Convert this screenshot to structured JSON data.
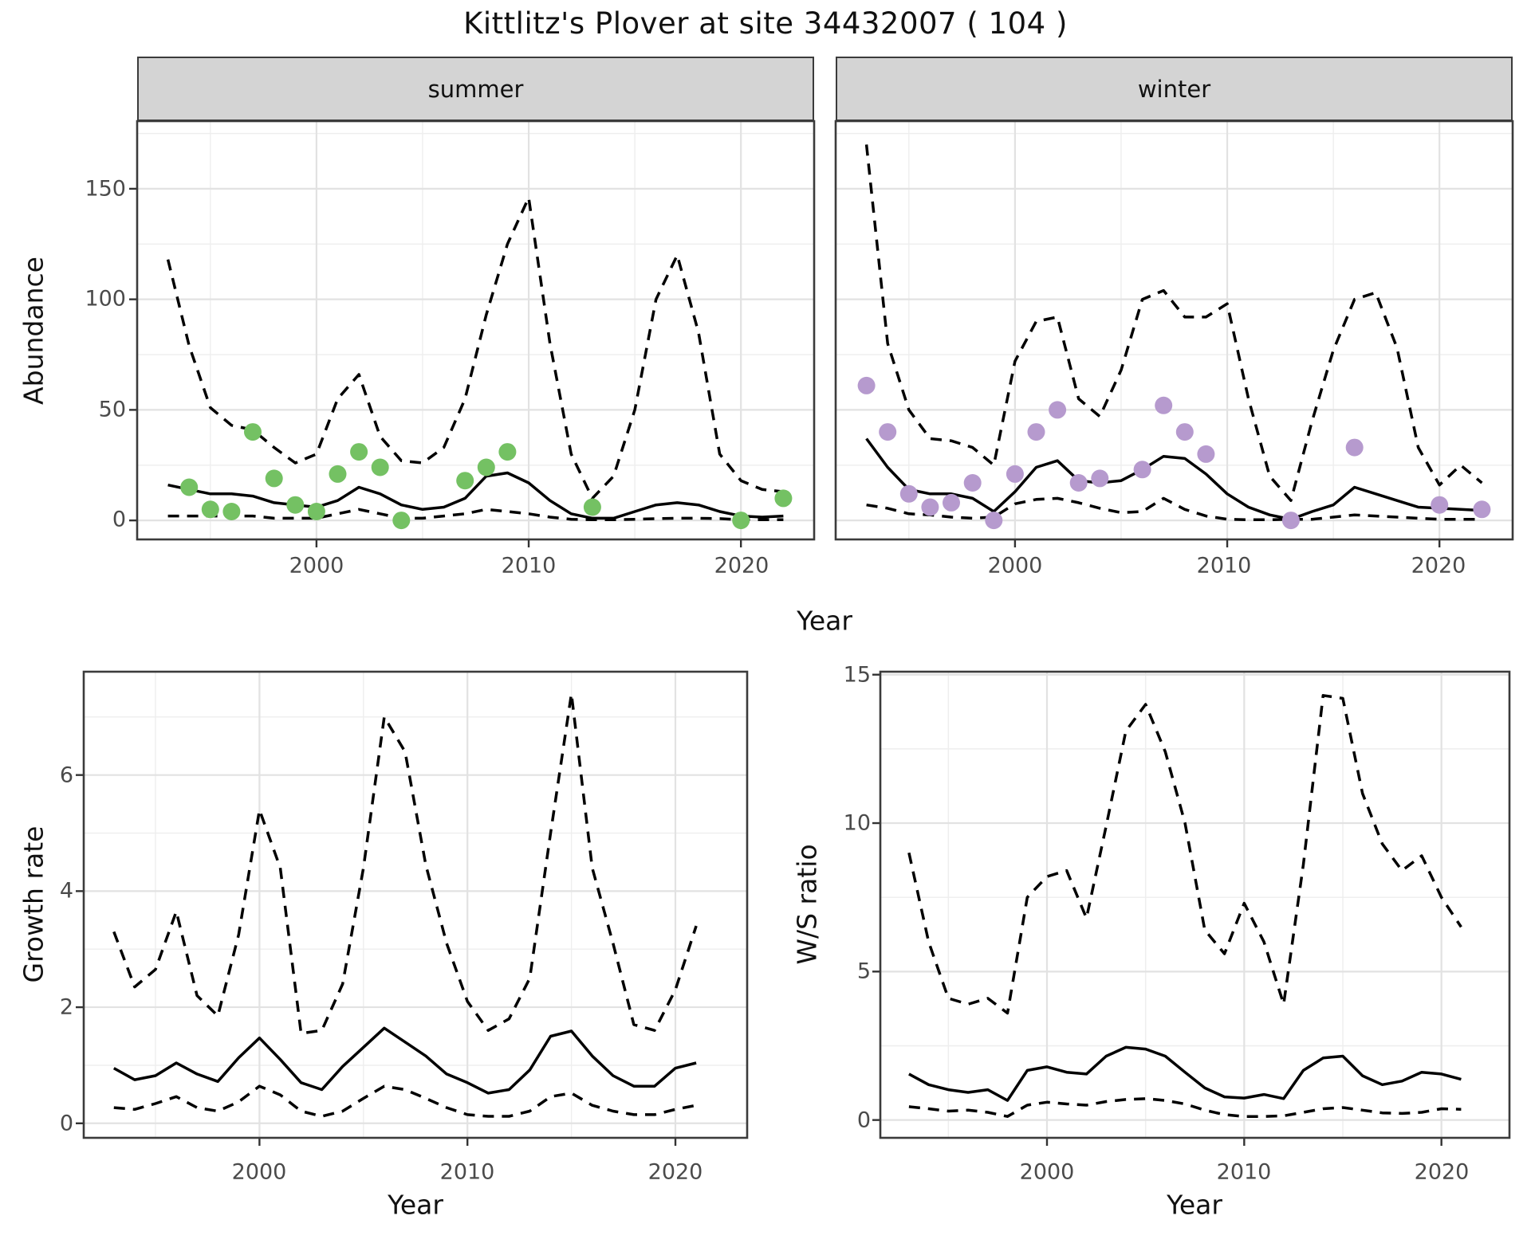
{
  "title": "Kittlitz's Plover at site 34432007 ( 104 )",
  "colors": {
    "summer_point": "#74c163",
    "winter_point": "#b69ace",
    "line": "#000000",
    "grid_major": "#e2e2e2",
    "grid_minor": "#eeeeee",
    "strip_fill": "#d4d4d4",
    "panel_border": "#3b3b3b",
    "tick_text": "#4a4a4a"
  },
  "chart_data": [
    {
      "id": "abundance-summer",
      "type": "line",
      "facet_label": "summer",
      "xlabel": "Year",
      "ylabel": "Abundance",
      "xlim": [
        1991.55,
        2023.45
      ],
      "ylim": [
        -8.6,
        180.6
      ],
      "x_major": [
        2000,
        2010,
        2020
      ],
      "x_minor": [
        1995,
        2005,
        2015
      ],
      "y_major": [
        0,
        50,
        100,
        150
      ],
      "y_minor": [
        25,
        75,
        125,
        175
      ],
      "x_tick_labels": [
        "2000",
        "2010",
        "2020"
      ],
      "y_tick_labels": [
        "0",
        "50",
        "100",
        "150"
      ],
      "grid": true,
      "legend": "none",
      "years": [
        1993,
        1994,
        1995,
        1996,
        1997,
        1998,
        1999,
        2000,
        2001,
        2002,
        2003,
        2004,
        2005,
        2006,
        2007,
        2008,
        2009,
        2010,
        2011,
        2012,
        2013,
        2014,
        2015,
        2016,
        2017,
        2018,
        2019,
        2020,
        2021,
        2022
      ],
      "series": [
        {
          "name": "median",
          "style": "solid",
          "values": [
            16,
            14,
            12,
            12,
            11,
            8,
            7,
            6,
            9,
            15,
            12,
            7,
            5,
            6,
            10,
            20,
            21.5,
            17,
            9,
            3,
            1,
            1,
            4,
            7,
            8,
            7,
            4,
            2,
            1.5,
            2
          ]
        },
        {
          "name": "upper_ci",
          "style": "dashed",
          "values": [
            118,
            79,
            51,
            43,
            41,
            33,
            26,
            30,
            55,
            66,
            38,
            27,
            26,
            33,
            55,
            93,
            125,
            146,
            80,
            30,
            10,
            20,
            50,
            100,
            120,
            85,
            30,
            18,
            14,
            13
          ]
        },
        {
          "name": "lower_ci",
          "style": "dashed",
          "values": [
            2,
            2,
            2,
            2,
            2,
            1,
            1,
            1,
            3,
            5,
            3,
            1,
            1,
            2,
            3,
            5,
            4,
            3,
            1.5,
            0.5,
            0.3,
            0.3,
            0.5,
            0.8,
            1,
            1,
            0.8,
            0.3,
            0.3,
            0.3
          ]
        }
      ],
      "points": {
        "name": "observed",
        "color": "#74c163",
        "data": [
          [
            1994,
            15
          ],
          [
            1995,
            5
          ],
          [
            1996,
            4
          ],
          [
            1997,
            40
          ],
          [
            1998,
            19
          ],
          [
            1999,
            7
          ],
          [
            2000,
            4
          ],
          [
            2001,
            21
          ],
          [
            2002,
            31
          ],
          [
            2003,
            24
          ],
          [
            2004,
            0
          ],
          [
            2007,
            18
          ],
          [
            2008,
            24
          ],
          [
            2009,
            31
          ],
          [
            2013,
            6
          ],
          [
            2020,
            0
          ],
          [
            2022,
            10
          ]
        ]
      }
    },
    {
      "id": "abundance-winter",
      "type": "line",
      "facet_label": "winter",
      "xlabel": "Year",
      "ylabel": "Abundance",
      "xlim": [
        1991.55,
        2023.45
      ],
      "ylim": [
        -8.6,
        180.6
      ],
      "x_major": [
        2000,
        2010,
        2020
      ],
      "x_minor": [
        1995,
        2005,
        2015
      ],
      "y_major": [
        0,
        50,
        100,
        150
      ],
      "y_minor": [
        25,
        75,
        125,
        175
      ],
      "x_tick_labels": [
        "2000",
        "2010",
        "2020"
      ],
      "y_tick_labels": [
        "0",
        "50",
        "100",
        "150"
      ],
      "grid": true,
      "legend": "none",
      "years": [
        1993,
        1994,
        1995,
        1996,
        1997,
        1998,
        1999,
        2000,
        2001,
        2002,
        2003,
        2004,
        2005,
        2006,
        2007,
        2008,
        2009,
        2010,
        2011,
        2012,
        2013,
        2014,
        2015,
        2016,
        2017,
        2018,
        2019,
        2020,
        2021,
        2022
      ],
      "series": [
        {
          "name": "median",
          "style": "solid",
          "values": [
            37,
            24,
            14,
            12,
            12,
            10,
            4,
            13,
            24,
            27,
            18,
            17,
            18,
            23,
            29,
            28,
            21,
            12,
            6,
            2.5,
            0.5,
            4,
            7,
            15,
            12,
            9,
            6,
            5.5,
            5,
            4.5
          ]
        },
        {
          "name": "upper_ci",
          "style": "dashed",
          "values": [
            170,
            80,
            50,
            37,
            36,
            33,
            25,
            72,
            90,
            92,
            55,
            47,
            68,
            100,
            104,
            92,
            92,
            98,
            55,
            20,
            9,
            45,
            77,
            100,
            103,
            78,
            33,
            16,
            25,
            17
          ]
        },
        {
          "name": "lower_ci",
          "style": "dashed",
          "values": [
            7,
            5.5,
            3,
            2.5,
            1.5,
            1,
            1.5,
            7.5,
            9.5,
            10,
            8,
            5.5,
            3.5,
            4,
            10,
            5,
            2,
            0.5,
            0.3,
            0.3,
            0.5,
            0.5,
            1.5,
            2.5,
            2,
            1.5,
            1,
            0.5,
            0.5,
            0.5
          ]
        }
      ],
      "points": {
        "name": "observed",
        "color": "#b69ace",
        "data": [
          [
            1993,
            61
          ],
          [
            1994,
            40
          ],
          [
            1995,
            12
          ],
          [
            1996,
            6
          ],
          [
            1997,
            8
          ],
          [
            1998,
            17
          ],
          [
            1999,
            0
          ],
          [
            2000,
            21
          ],
          [
            2001,
            40
          ],
          [
            2002,
            50
          ],
          [
            2003,
            17
          ],
          [
            2004,
            19
          ],
          [
            2006,
            23
          ],
          [
            2007,
            52
          ],
          [
            2008,
            40
          ],
          [
            2009,
            30
          ],
          [
            2013,
            0
          ],
          [
            2016,
            33
          ],
          [
            2020,
            7
          ],
          [
            2022,
            5
          ]
        ]
      }
    },
    {
      "id": "growth-rate",
      "type": "line",
      "facet_label": "",
      "xlabel": "Year",
      "ylabel": "Growth rate",
      "xlim": [
        1991.55,
        2023.45
      ],
      "ylim": [
        -0.25,
        7.78
      ],
      "x_major": [
        2000,
        2010,
        2020
      ],
      "x_minor": [
        1995,
        2005,
        2015
      ],
      "y_major": [
        0,
        2,
        4,
        6
      ],
      "y_minor": [
        1,
        3,
        5,
        7
      ],
      "x_tick_labels": [
        "2000",
        "2010",
        "2020"
      ],
      "y_tick_labels": [
        "0",
        "2",
        "4",
        "6"
      ],
      "grid": true,
      "legend": "none",
      "years": [
        1993,
        1994,
        1995,
        1996,
        1997,
        1998,
        1999,
        2000,
        2001,
        2002,
        2003,
        2004,
        2005,
        2006,
        2007,
        2008,
        2009,
        2010,
        2011,
        2012,
        2013,
        2014,
        2015,
        2016,
        2017,
        2018,
        2019,
        2020,
        2021
      ],
      "series": [
        {
          "name": "median",
          "style": "solid",
          "values": [
            0.95,
            0.75,
            0.82,
            1.04,
            0.85,
            0.72,
            1.13,
            1.47,
            1.1,
            0.7,
            0.58,
            0.98,
            1.31,
            1.64,
            1.4,
            1.16,
            0.85,
            0.7,
            0.52,
            0.58,
            0.92,
            1.5,
            1.59,
            1.16,
            0.82,
            0.64,
            0.64,
            0.95,
            1.04
          ]
        },
        {
          "name": "upper_ci",
          "style": "dashed",
          "values": [
            3.3,
            2.35,
            2.65,
            3.65,
            2.2,
            1.85,
            3.25,
            5.4,
            4.4,
            1.55,
            1.6,
            2.4,
            4.4,
            7.0,
            6.4,
            4.45,
            3.1,
            2.1,
            1.6,
            1.8,
            2.5,
            5.0,
            7.4,
            4.4,
            3.1,
            1.7,
            1.6,
            2.3,
            3.4
          ]
        },
        {
          "name": "lower_ci",
          "style": "dashed",
          "values": [
            0.27,
            0.24,
            0.34,
            0.46,
            0.27,
            0.21,
            0.37,
            0.64,
            0.49,
            0.21,
            0.12,
            0.21,
            0.43,
            0.64,
            0.58,
            0.43,
            0.27,
            0.15,
            0.12,
            0.12,
            0.21,
            0.46,
            0.52,
            0.31,
            0.21,
            0.15,
            0.15,
            0.24,
            0.31
          ]
        }
      ],
      "points": null
    },
    {
      "id": "ws-ratio",
      "type": "line",
      "facet_label": "",
      "xlabel": "Year",
      "ylabel": "W/S ratio",
      "xlim": [
        1991.55,
        2023.45
      ],
      "ylim": [
        -0.6,
        15.1
      ],
      "x_major": [
        2000,
        2010,
        2020
      ],
      "x_minor": [
        1995,
        2005,
        2015
      ],
      "y_major": [
        0,
        5,
        10,
        15
      ],
      "y_minor": [
        2.5,
        7.5,
        12.5
      ],
      "x_tick_labels": [
        "2000",
        "2010",
        "2020"
      ],
      "y_tick_labels": [
        "0",
        "5",
        "10",
        "15"
      ],
      "grid": true,
      "legend": "none",
      "years": [
        1993,
        1994,
        1995,
        1996,
        1997,
        1998,
        1999,
        2000,
        2001,
        2002,
        2003,
        2004,
        2005,
        2006,
        2007,
        2008,
        2009,
        2010,
        2011,
        2012,
        2013,
        2014,
        2015,
        2016,
        2017,
        2018,
        2019,
        2020,
        2021
      ],
      "series": [
        {
          "name": "median",
          "style": "solid",
          "values": [
            1.55,
            1.19,
            1.02,
            0.93,
            1.02,
            0.66,
            1.67,
            1.79,
            1.61,
            1.55,
            2.15,
            2.45,
            2.39,
            2.15,
            1.61,
            1.08,
            0.78,
            0.74,
            0.86,
            0.72,
            1.67,
            2.09,
            2.15,
            1.49,
            1.19,
            1.31,
            1.61,
            1.55,
            1.37
          ]
        },
        {
          "name": "upper_ci",
          "style": "dashed",
          "values": [
            9.0,
            6.0,
            4.1,
            3.9,
            4.1,
            3.6,
            7.5,
            8.2,
            8.4,
            6.8,
            9.9,
            13.1,
            14.0,
            12.4,
            10.0,
            6.4,
            5.6,
            7.3,
            6.0,
            3.9,
            8.6,
            14.3,
            14.2,
            11.0,
            9.3,
            8.4,
            8.9,
            7.5,
            6.5
          ]
        },
        {
          "name": "lower_ci",
          "style": "dashed",
          "values": [
            0.45,
            0.38,
            0.3,
            0.33,
            0.26,
            0.12,
            0.5,
            0.6,
            0.54,
            0.5,
            0.62,
            0.69,
            0.72,
            0.66,
            0.54,
            0.33,
            0.18,
            0.12,
            0.12,
            0.14,
            0.26,
            0.38,
            0.42,
            0.33,
            0.24,
            0.22,
            0.26,
            0.38,
            0.36
          ]
        }
      ],
      "points": null
    }
  ]
}
